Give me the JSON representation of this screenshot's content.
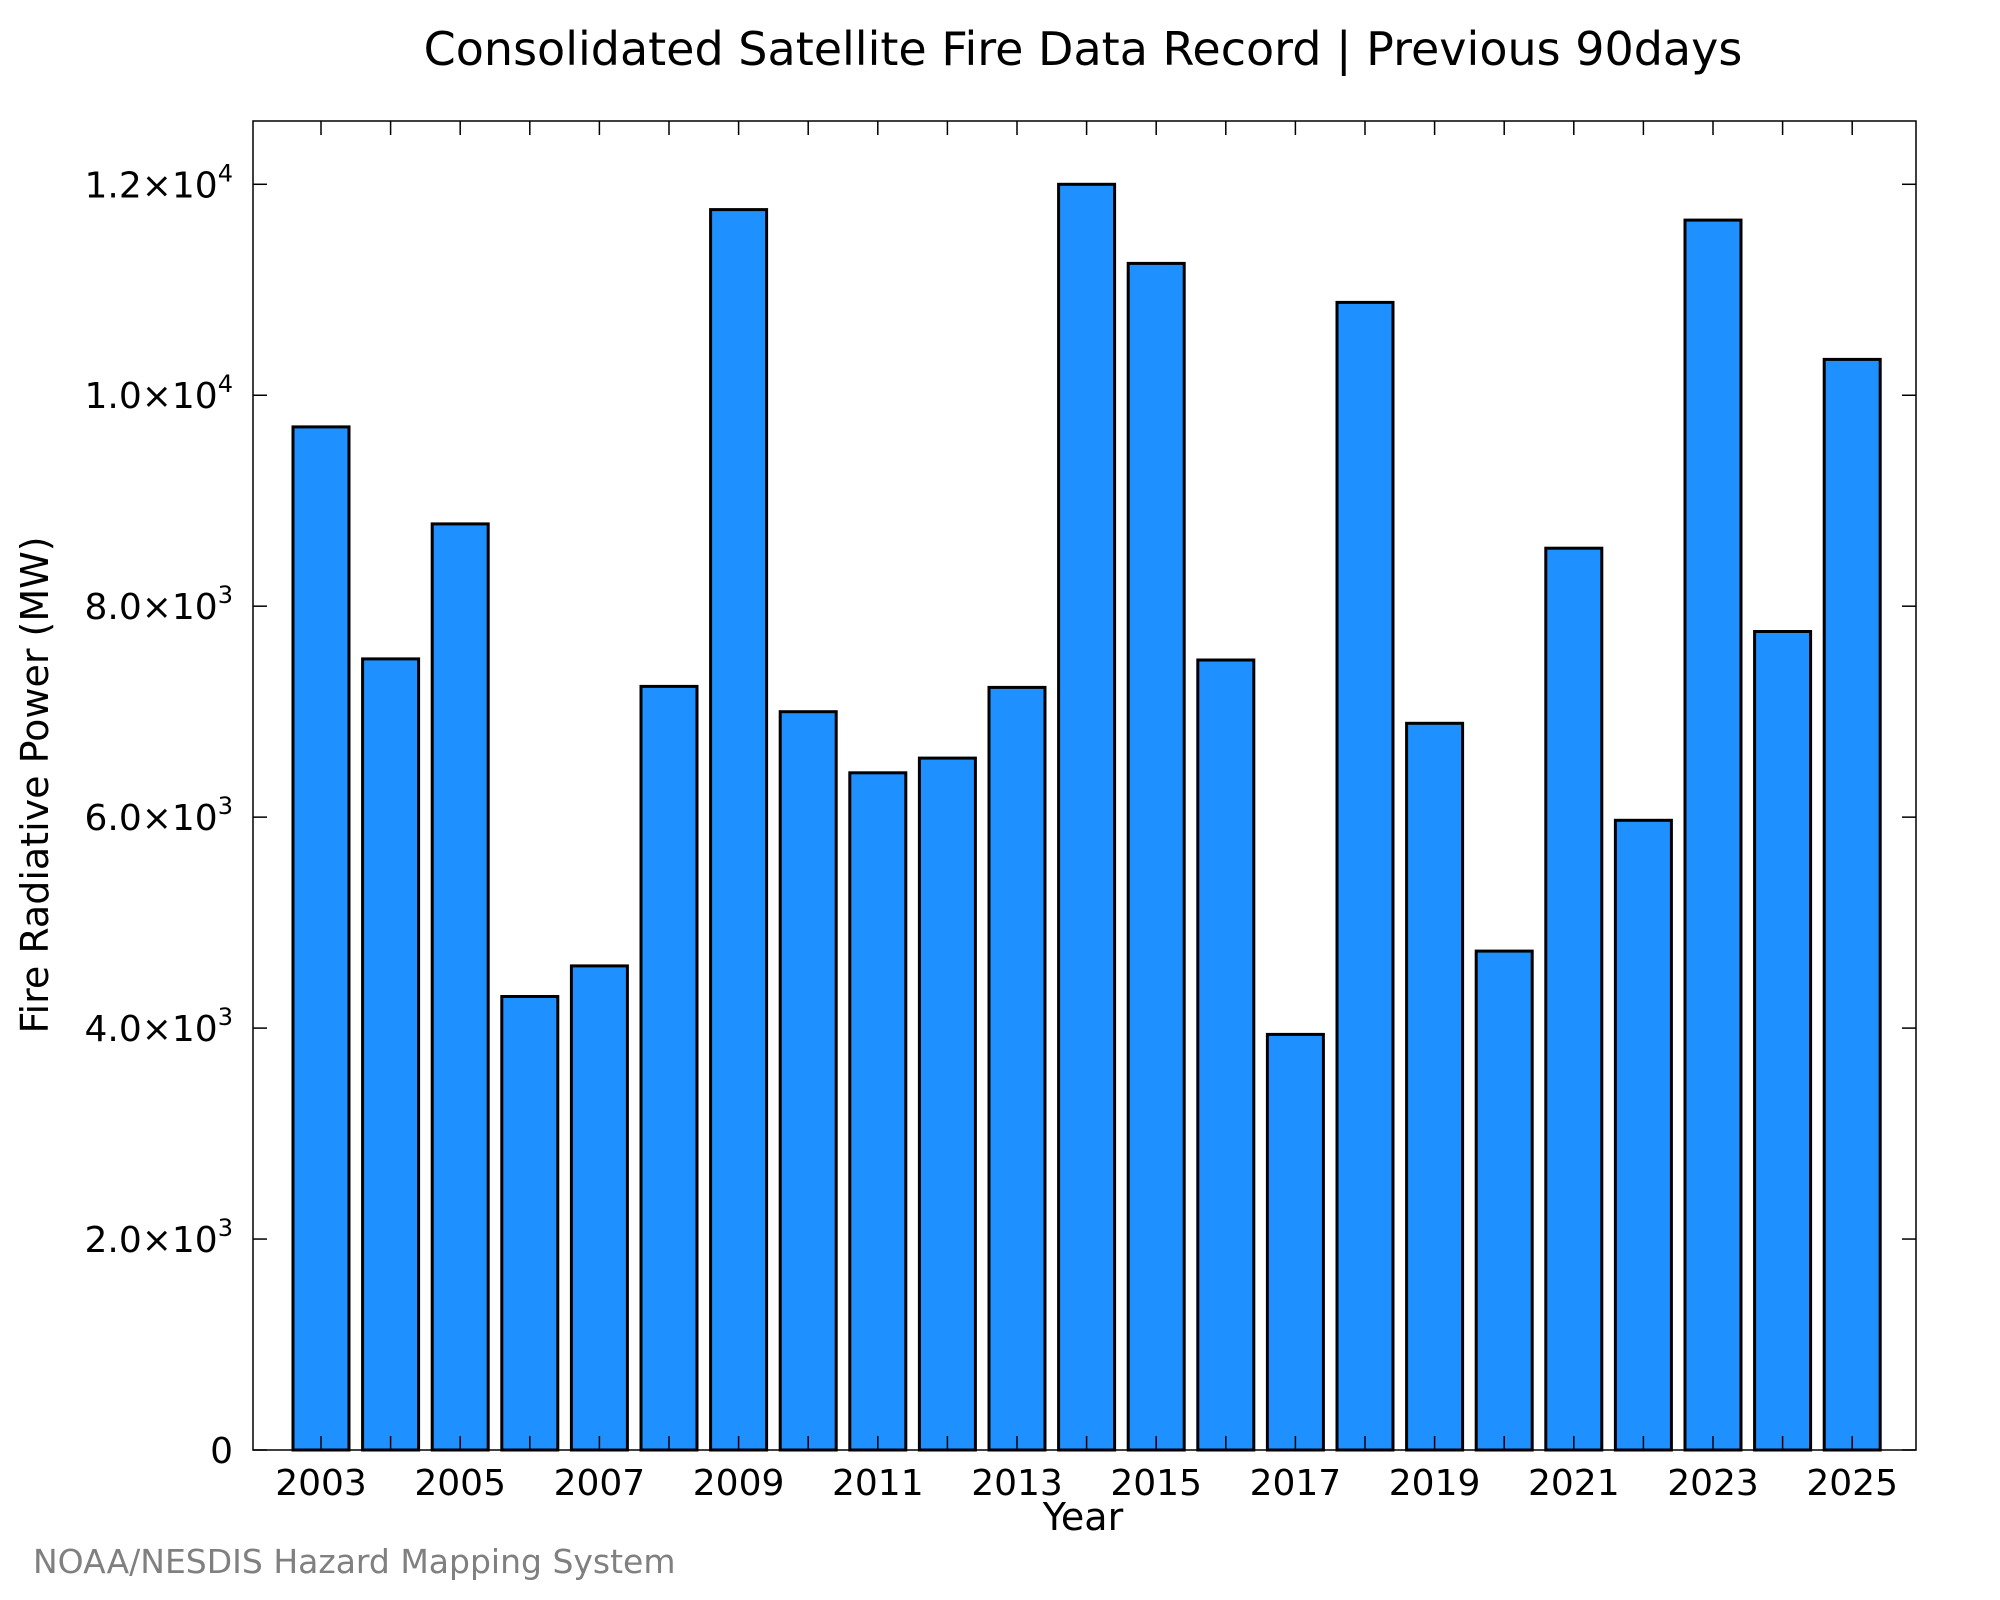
{
  "chart_data": {
    "type": "bar",
    "title": "Consolidated Satellite Fire Data Record | Previous 90days",
    "xlabel": "Year",
    "ylabel": "Fire Radiative Power (MW)",
    "ylim": [
      0,
      12600
    ],
    "grid": false,
    "categories": [
      "2003",
      "2004",
      "2005",
      "2006",
      "2007",
      "2008",
      "2009",
      "2010",
      "2011",
      "2012",
      "2013",
      "2014",
      "2015",
      "2016",
      "2017",
      "2018",
      "2019",
      "2020",
      "2021",
      "2022",
      "2023",
      "2024",
      "2025"
    ],
    "values": [
      9700,
      7500,
      8780,
      4300,
      4590,
      7240,
      11760,
      7000,
      6420,
      6560,
      7230,
      12000,
      11250,
      7490,
      3940,
      10880,
      6890,
      4730,
      8550,
      5970,
      11660,
      7760,
      10340
    ],
    "bar_color": "#1E90FF",
    "edge_color": "#000000",
    "xtick_labels": [
      "2003",
      "2005",
      "2007",
      "2009",
      "2011",
      "2013",
      "2015",
      "2017",
      "2019",
      "2021",
      "2023",
      "2025"
    ],
    "ytick_values": [
      0,
      2000,
      4000,
      6000,
      8000,
      10000,
      12000
    ],
    "ytick_labels": [
      {
        "base": "0",
        "exp": ""
      },
      {
        "base": "2.0×10",
        "exp": "3"
      },
      {
        "base": "4.0×10",
        "exp": "3"
      },
      {
        "base": "6.0×10",
        "exp": "3"
      },
      {
        "base": "8.0×10",
        "exp": "3"
      },
      {
        "base": "1.0×10",
        "exp": "4"
      },
      {
        "base": "1.2×10",
        "exp": "4"
      }
    ]
  },
  "credit": "NOAA/NESDIS Hazard Mapping System"
}
